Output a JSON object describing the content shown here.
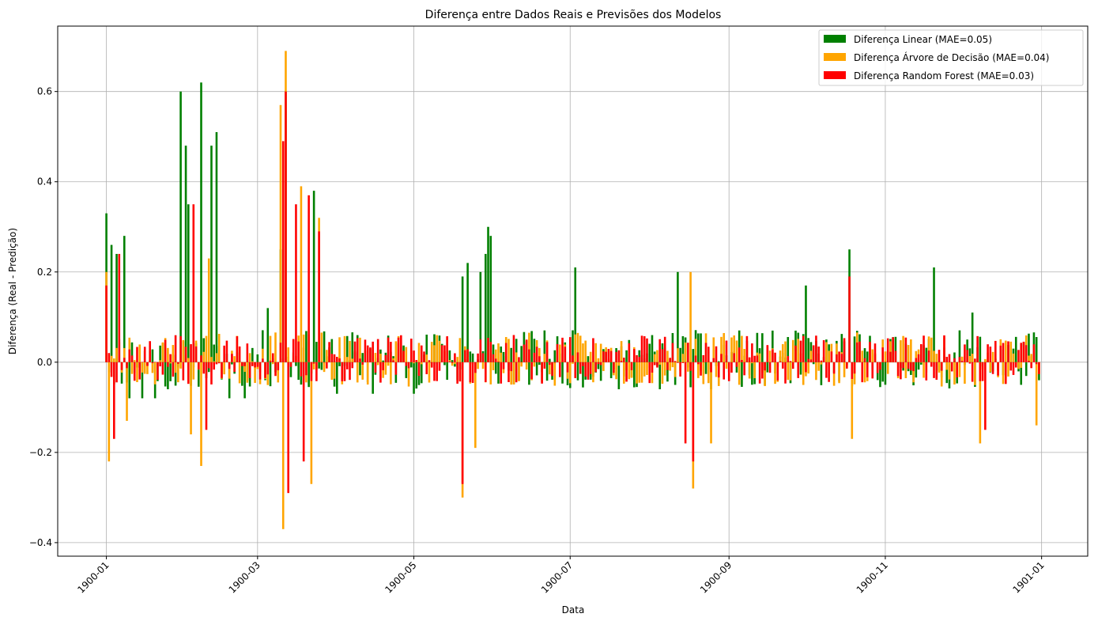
{
  "chart_data": {
    "type": "bar",
    "title": "Diferença entre Dados Reais e Previsões dos Modelos",
    "xlabel": "Data",
    "ylabel": "Diferença (Real - Predição)",
    "xlim": [
      "1899-12-13",
      "1901-01-19"
    ],
    "ylim": [
      -0.43,
      0.745
    ],
    "grid": true,
    "legend_position": "top-right",
    "x_ticks": [
      "1900-01",
      "1900-03",
      "1900-05",
      "1900-07",
      "1900-09",
      "1900-11",
      "1901-01"
    ],
    "y_ticks": [
      "−0.4",
      "−0.2",
      "0.0",
      "0.2",
      "0.4",
      "0.6"
    ],
    "y_tick_values": [
      -0.4,
      -0.2,
      0.0,
      0.2,
      0.4,
      0.6
    ],
    "x_start_date": "1900-01-01",
    "x_end_date": "1900-12-31",
    "series": [
      {
        "name": "Diferença Linear (MAE=0.05)",
        "color": "#008000",
        "points": [
          [
            "1900-01-01",
            0.33
          ],
          [
            "1900-01-03",
            0.26
          ],
          [
            "1900-01-05",
            0.24
          ],
          [
            "1900-01-08",
            0.28
          ],
          [
            "1900-01-10",
            -0.08
          ],
          [
            "1900-01-15",
            -0.08
          ],
          [
            "1900-01-20",
            -0.08
          ],
          [
            "1900-01-25",
            -0.06
          ],
          [
            "1900-01-30",
            0.6
          ],
          [
            "1900-02-01",
            0.48
          ],
          [
            "1900-02-02",
            0.35
          ],
          [
            "1900-02-07",
            0.62
          ],
          [
            "1900-02-11",
            0.48
          ],
          [
            "1900-02-13",
            0.51
          ],
          [
            "1900-02-18",
            -0.08
          ],
          [
            "1900-02-24",
            -0.08
          ],
          [
            "1900-03-05",
            0.12
          ],
          [
            "1900-03-10",
            0.25
          ],
          [
            "1900-03-12",
            0.6
          ],
          [
            "1900-03-23",
            0.38
          ],
          [
            "1900-04-01",
            -0.07
          ],
          [
            "1900-04-15",
            -0.07
          ],
          [
            "1900-05-01",
            -0.07
          ],
          [
            "1900-05-20",
            0.19
          ],
          [
            "1900-05-22",
            0.22
          ],
          [
            "1900-05-27",
            0.2
          ],
          [
            "1900-05-29",
            0.24
          ],
          [
            "1900-05-30",
            0.3
          ],
          [
            "1900-05-31",
            0.28
          ],
          [
            "1900-06-15",
            -0.05
          ],
          [
            "1900-07-03",
            0.21
          ],
          [
            "1900-07-20",
            -0.06
          ],
          [
            "1900-08-05",
            -0.06
          ],
          [
            "1900-08-12",
            0.2
          ],
          [
            "1900-08-25",
            -0.06
          ],
          [
            "1900-09-10",
            -0.05
          ],
          [
            "1900-10-01",
            0.17
          ],
          [
            "1900-10-18",
            0.25
          ],
          [
            "1900-11-01",
            -0.05
          ],
          [
            "1900-11-20",
            0.21
          ],
          [
            "1900-12-05",
            0.11
          ],
          [
            "1900-12-31",
            -0.04
          ]
        ]
      },
      {
        "name": "Diferença Árvore de Decisão (MAE=0.04)",
        "color": "#FFA500",
        "points": [
          [
            "1900-01-01",
            0.2
          ],
          [
            "1900-01-02",
            -0.22
          ],
          [
            "1900-01-09",
            -0.13
          ],
          [
            "1900-02-03",
            -0.16
          ],
          [
            "1900-02-07",
            -0.23
          ],
          [
            "1900-02-10",
            0.23
          ],
          [
            "1900-03-10",
            0.57
          ],
          [
            "1900-03-11",
            -0.37
          ],
          [
            "1900-03-12",
            0.69
          ],
          [
            "1900-03-18",
            0.39
          ],
          [
            "1900-03-22",
            -0.27
          ],
          [
            "1900-03-25",
            0.32
          ],
          [
            "1900-05-20",
            -0.3
          ],
          [
            "1900-05-25",
            -0.19
          ],
          [
            "1900-08-17",
            0.2
          ],
          [
            "1900-08-18",
            -0.28
          ],
          [
            "1900-08-25",
            -0.18
          ],
          [
            "1900-10-19",
            -0.17
          ],
          [
            "1900-12-08",
            -0.18
          ],
          [
            "1900-12-30",
            -0.14
          ]
        ]
      },
      {
        "name": "Diferença Random Forest (MAE=0.03)",
        "color": "#FF0000",
        "points": [
          [
            "1900-01-01",
            0.17
          ],
          [
            "1900-01-04",
            -0.17
          ],
          [
            "1900-01-06",
            0.24
          ],
          [
            "1900-02-04",
            0.35
          ],
          [
            "1900-02-09",
            -0.15
          ],
          [
            "1900-03-11",
            0.49
          ],
          [
            "1900-03-12",
            0.6
          ],
          [
            "1900-03-13",
            -0.29
          ],
          [
            "1900-03-16",
            0.35
          ],
          [
            "1900-03-19",
            -0.22
          ],
          [
            "1900-03-21",
            0.37
          ],
          [
            "1900-03-25",
            0.29
          ],
          [
            "1900-05-20",
            -0.27
          ],
          [
            "1900-08-15",
            -0.18
          ],
          [
            "1900-08-18",
            -0.22
          ],
          [
            "1900-10-18",
            0.19
          ],
          [
            "1900-12-10",
            -0.15
          ]
        ]
      }
    ]
  }
}
